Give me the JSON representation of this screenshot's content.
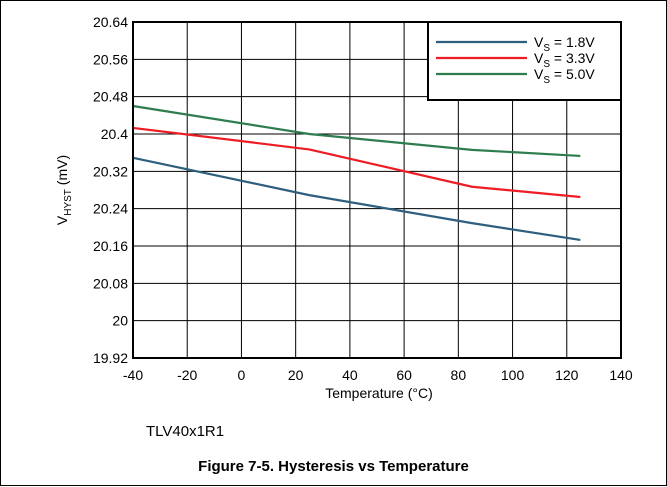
{
  "chart_data": {
    "type": "line",
    "title": "",
    "xlabel": "Temperature (°C)",
    "ylabel": {
      "main": "V",
      "sub": "HYST",
      "unit": " (mV)"
    },
    "xlim": [
      -40,
      140
    ],
    "ylim": [
      19.92,
      20.64
    ],
    "x_ticks": [
      "-40",
      "-20",
      "0",
      "20",
      "40",
      "60",
      "80",
      "100",
      "120",
      "140"
    ],
    "y_ticks": [
      "20.64",
      "20.56",
      "20.48",
      "20.4",
      "20.32",
      "20.24",
      "20.16",
      "20.08",
      "20",
      "19.92"
    ],
    "grid": true,
    "legend_position": "top-right",
    "series": [
      {
        "name": "1.8V",
        "label_prefix": "V",
        "label_sub": "S",
        "label_suffix": " = 1.8V",
        "color": "#2f5f7f",
        "x": [
          -40,
          25,
          85,
          125
        ],
        "y": [
          20.349,
          20.269,
          20.209,
          20.173
        ]
      },
      {
        "name": "3.3V",
        "label_prefix": "V",
        "label_sub": "S",
        "label_suffix": " = 3.3V",
        "color": "#ee1c24",
        "x": [
          -40,
          25,
          85,
          125
        ],
        "y": [
          20.413,
          20.367,
          20.287,
          20.265
        ]
      },
      {
        "name": "5.0V",
        "label_prefix": "V",
        "label_sub": "S",
        "label_suffix": " = 5.0V",
        "color": "#2e7d4f",
        "x": [
          -40,
          25,
          85,
          125
        ],
        "y": [
          20.46,
          20.4,
          20.366,
          20.353
        ]
      }
    ]
  },
  "device_note": "TLV40x1R1",
  "caption": "Figure 7-5. Hysteresis vs Temperature"
}
